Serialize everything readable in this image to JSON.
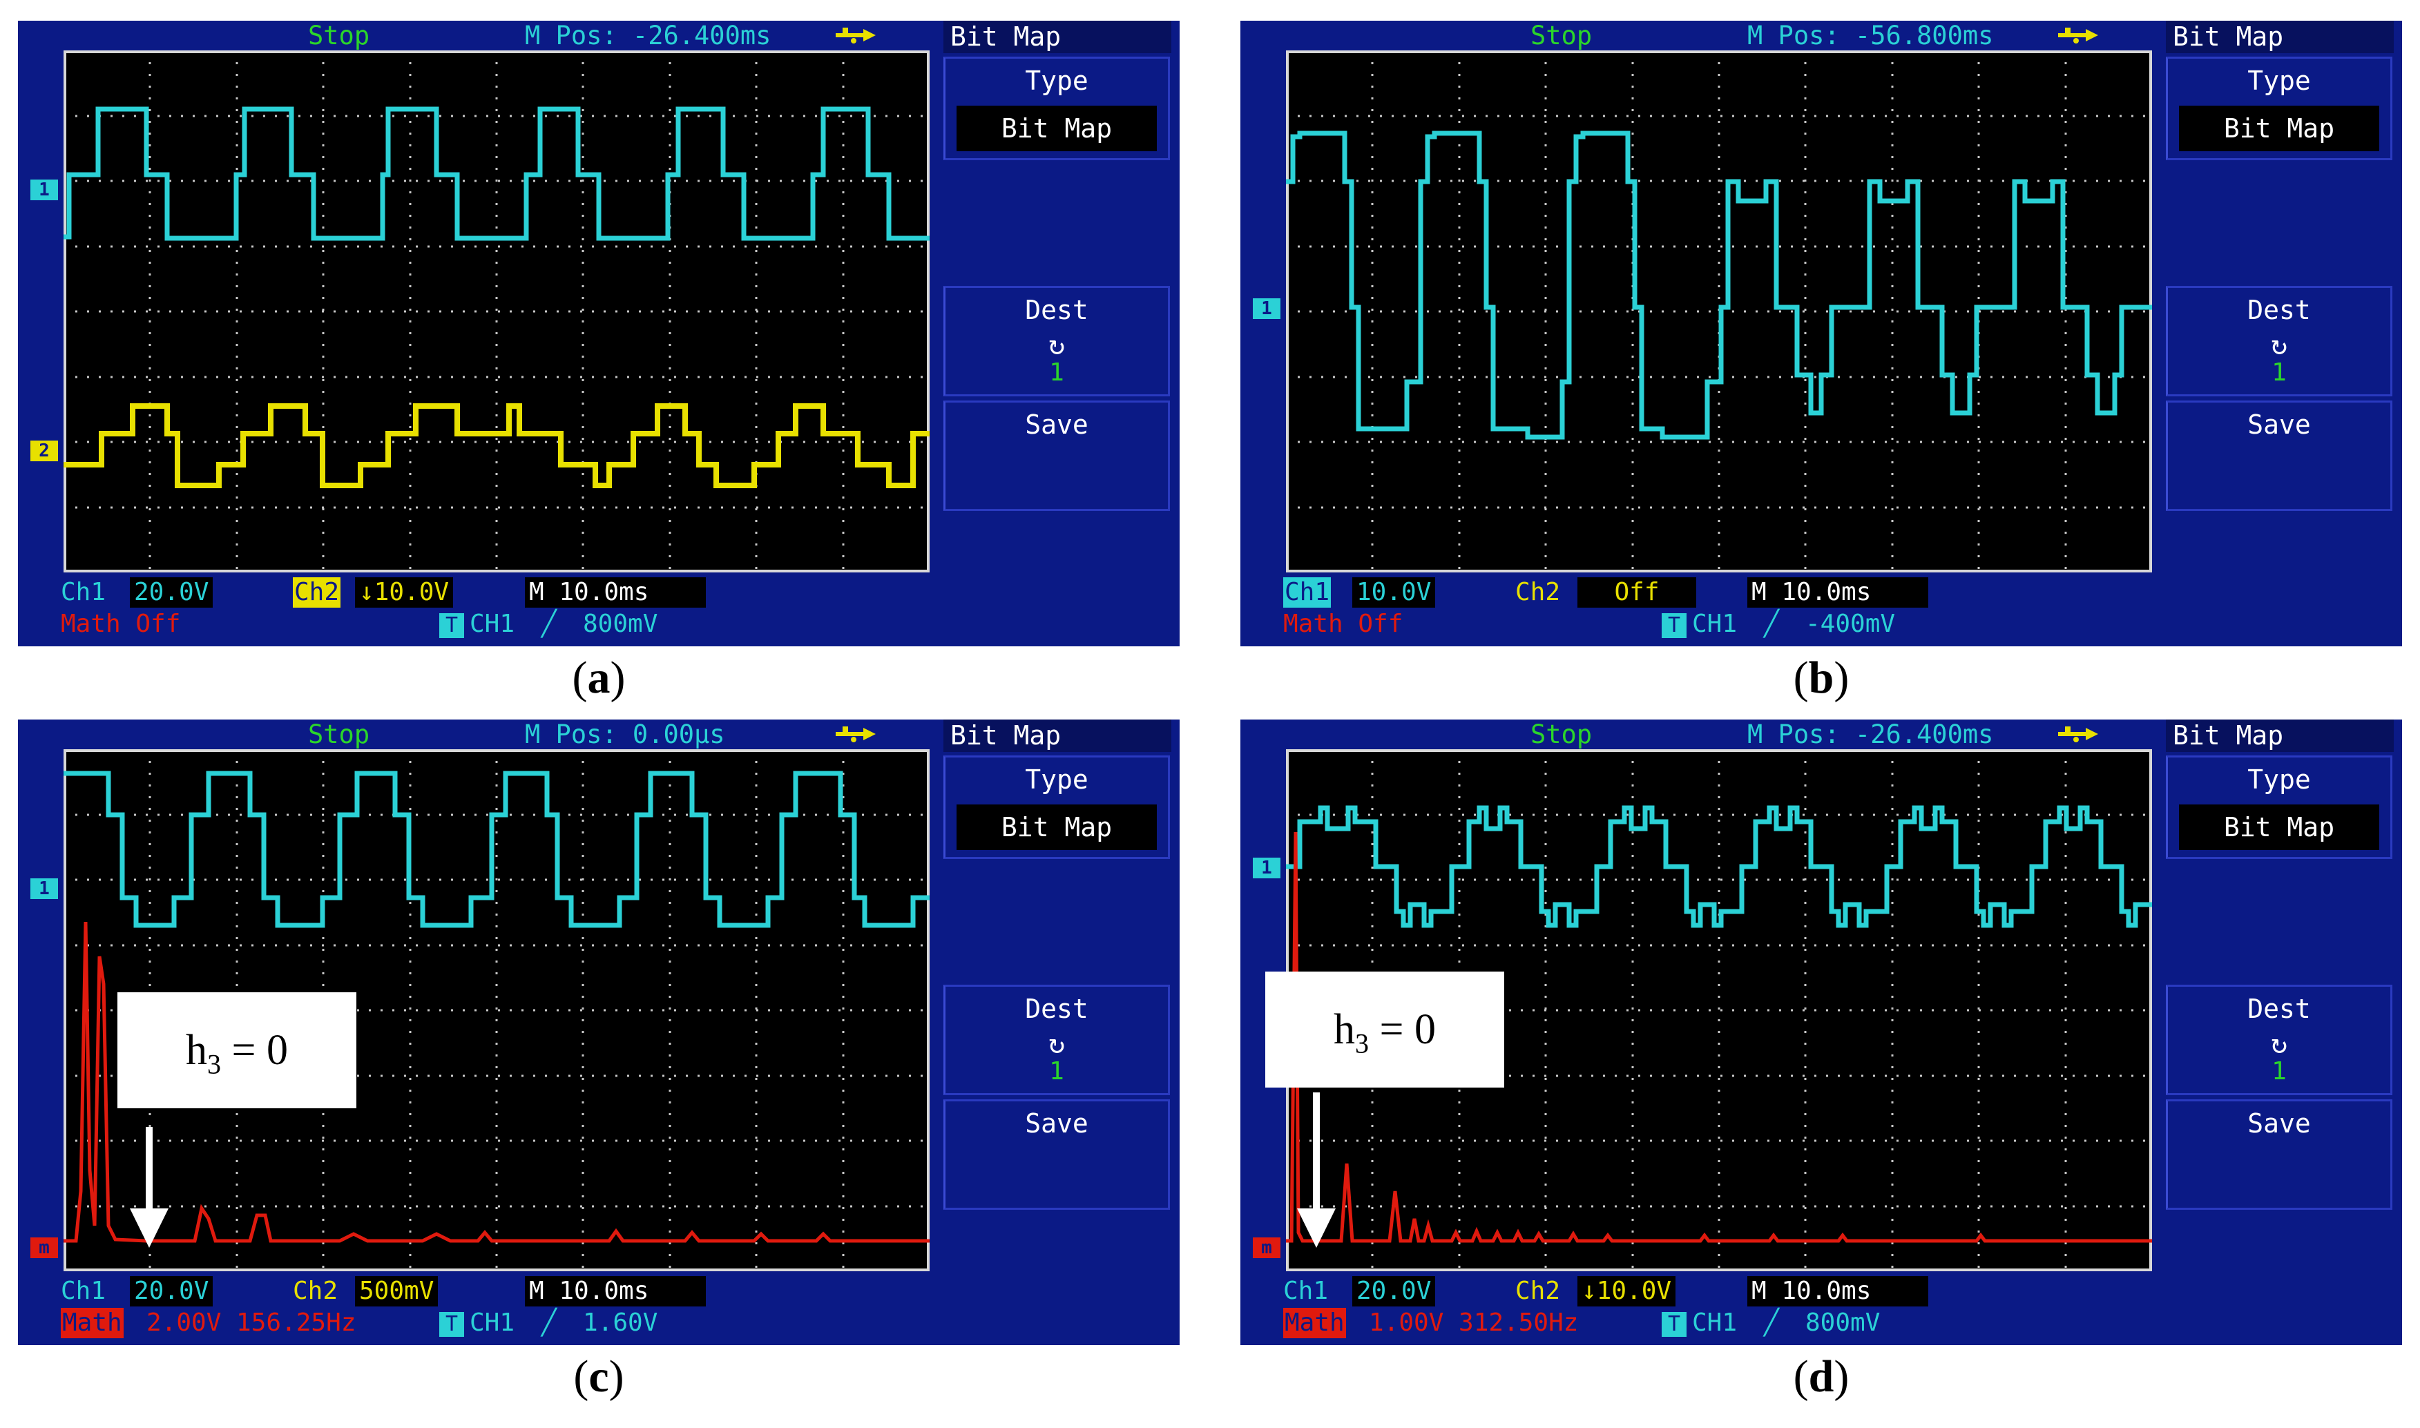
{
  "colors": {
    "scope_bg": "#0b1a86",
    "ch1": "#2bd1d6",
    "ch2": "#e8e000",
    "math": "#e01a0e",
    "run_status": "#2bd52b"
  },
  "panels": [
    {
      "id": "a",
      "caption_letter": "a",
      "top": {
        "status": "Stop",
        "mpos": "M Pos: -26.400ms"
      },
      "menu": {
        "title": "Bit Map",
        "type_label": "Type",
        "type_value": "Bit Map",
        "dest_label": "Dest",
        "dest_value": "1",
        "save_label": "Save"
      },
      "bottom": {
        "ch1_label": "Ch1",
        "ch1_value": "20.0V",
        "ch2_label": "Ch2",
        "ch2_value": "↓10.0V",
        "time": "M 10.0ms",
        "math": "Math Off",
        "trig_src": "CH1",
        "trig_slope": "╱",
        "trig_level": "800mV"
      },
      "markers": [
        "1",
        "2"
      ]
    },
    {
      "id": "b",
      "caption_letter": "b",
      "top": {
        "status": "Stop",
        "mpos": "M Pos: -56.800ms"
      },
      "menu": {
        "title": "Bit Map",
        "type_label": "Type",
        "type_value": "Bit Map",
        "dest_label": "Dest",
        "dest_value": "1",
        "save_label": "Save"
      },
      "bottom": {
        "ch1_label": "Ch1",
        "ch1_value": "10.0V",
        "ch2_label": "Ch2",
        "ch2_value": "Off",
        "time": "M 10.0ms",
        "math": "Math Off",
        "trig_src": "CH1",
        "trig_slope": "╱",
        "trig_level": "-400mV"
      },
      "markers": [
        "1"
      ]
    },
    {
      "id": "c",
      "caption_letter": "c",
      "top": {
        "status": "Stop",
        "mpos": "M Pos: 0.00μs"
      },
      "menu": {
        "title": "Bit Map",
        "type_label": "Type",
        "type_value": "Bit Map",
        "dest_label": "Dest",
        "dest_value": "1",
        "save_label": "Save"
      },
      "bottom": {
        "ch1_label": "Ch1",
        "ch1_value": "20.0V",
        "ch2_label": "Ch2",
        "ch2_value": "500mV",
        "time": "M 10.0ms",
        "math_label": "Math",
        "math_value": "2.00V 156.25Hz",
        "trig_src": "CH1",
        "trig_slope": "╱",
        "trig_level": "1.60V"
      },
      "markers": [
        "1",
        "m"
      ],
      "annotation": {
        "h": "h",
        "sub": "3",
        "rest": " = 0"
      }
    },
    {
      "id": "d",
      "caption_letter": "d",
      "top": {
        "status": "Stop",
        "mpos": "M Pos: -26.400ms"
      },
      "menu": {
        "title": "Bit Map",
        "type_label": "Type",
        "type_value": "Bit Map",
        "dest_label": "Dest",
        "dest_value": "1",
        "save_label": "Save"
      },
      "bottom": {
        "ch1_label": "Ch1",
        "ch1_value": "20.0V",
        "ch2_label": "Ch2",
        "ch2_value": "↓10.0V",
        "time": "M 10.0ms",
        "math_label": "Math",
        "math_value": "1.00V 312.50Hz",
        "trig_src": "CH1",
        "trig_slope": "╱",
        "trig_level": "800mV"
      },
      "markers": [
        "1",
        "m"
      ],
      "annotation": {
        "h": "h",
        "sub": "3",
        "rest": " = 0"
      }
    }
  ]
}
